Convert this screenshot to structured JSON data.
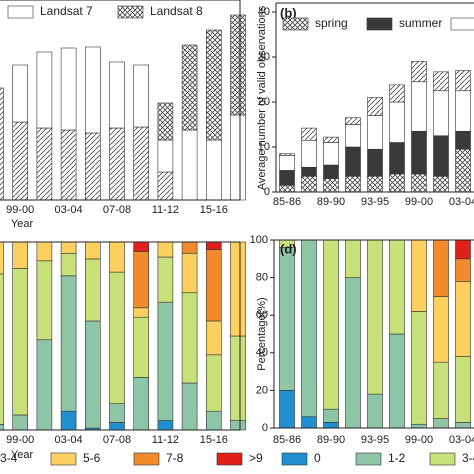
{
  "chart_data": [
    {
      "type": "bar",
      "stacked": true,
      "xlabel": "Year",
      "categories": [
        null,
        "99-00",
        null,
        "03-04",
        null,
        "07-08",
        null,
        "11-12",
        null,
        "15-16",
        null
      ],
      "ylim": [
        0,
        40
      ],
      "series": [
        {
          "color": "#ffffff",
          "hatch": "diag",
          "values": [
            22.4,
            15.6,
            14.4,
            14,
            13.4,
            14.4,
            14.6,
            5.6,
            0,
            0,
            0
          ]
        },
        {
          "name": "Landsat 7",
          "color": "#ffffff",
          "hatch": "none",
          "values": [
            0,
            11.4,
            15.2,
            16.4,
            17.2,
            13.2,
            12.4,
            6.4,
            14,
            12,
            17
          ]
        },
        {
          "name": "Landsat 8",
          "color": "#ffffff",
          "hatch": "cross",
          "values": [
            0,
            0,
            0,
            0,
            0,
            0,
            0,
            7.4,
            17,
            22,
            20
          ]
        }
      ]
    },
    {
      "type": "bar",
      "stacked": true,
      "title": "(b)",
      "ylabel": "Average number of valid observations",
      "categories": [
        "85-86",
        null,
        "89-90",
        null,
        "93-95",
        null,
        "99-00",
        null,
        "03-04"
      ],
      "ylim": [
        0,
        42
      ],
      "yticks": [
        0,
        10,
        20,
        30,
        40
      ],
      "series": [
        {
          "name": "spring",
          "color": "#ffffff",
          "hatch": "cross",
          "values": [
            1.5,
            3.5,
            3,
            3.5,
            3.5,
            4,
            4,
            3.5,
            9.5
          ]
        },
        {
          "name": "summer",
          "color": "#3a3a3a",
          "hatch": "none",
          "values": [
            3.3,
            2,
            3,
            6.5,
            6,
            7,
            9.5,
            9,
            4
          ]
        },
        {
          "color": "#ffffff",
          "hatch": "none",
          "values": [
            3.3,
            6,
            5,
            5,
            7.5,
            9,
            11,
            10,
            9
          ]
        },
        {
          "color": "#ffffff",
          "hatch": "diag",
          "values": [
            0.4,
            2.7,
            1.2,
            1.5,
            4,
            3.8,
            4.5,
            4.2,
            4.5
          ]
        }
      ]
    },
    {
      "type": "bar",
      "stacked": true,
      "xlabel": "Year",
      "categories": [
        null,
        "99-00",
        null,
        "03-04",
        null,
        "07-08",
        null,
        "11-12",
        null,
        "15-16",
        null
      ],
      "ylim": [
        0,
        100
      ],
      "series": [
        {
          "color": "#1f8fcf",
          "hatch": "none",
          "values": [
            0,
            0,
            0,
            10,
            1,
            4,
            0,
            5,
            0,
            0,
            0
          ]
        },
        {
          "color": "#8ec5a6",
          "hatch": "none",
          "values": [
            3,
            8,
            48,
            72,
            57,
            10,
            28,
            63,
            25,
            10,
            5
          ]
        },
        {
          "name": "3-4",
          "color": "#c8e07a",
          "hatch": "none",
          "values": [
            80,
            78,
            42,
            12,
            33,
            70,
            32,
            24,
            48,
            30,
            45
          ]
        },
        {
          "name": "5-6",
          "color": "#fdd060",
          "hatch": "none",
          "values": [
            17,
            14,
            10,
            6,
            9,
            16,
            5,
            8,
            21,
            18,
            50
          ]
        },
        {
          "name": "7-8",
          "color": "#f28a2e",
          "hatch": "none",
          "values": [
            0,
            0,
            0,
            0,
            0,
            0,
            30,
            0,
            6,
            38,
            0
          ]
        },
        {
          "name": ">9",
          "color": "#e0201b",
          "hatch": "none",
          "values": [
            0,
            0,
            0,
            0,
            0,
            0,
            5,
            0,
            0,
            4,
            0
          ]
        }
      ]
    },
    {
      "type": "bar",
      "stacked": true,
      "title": "(d)",
      "ylabel": "Percentage(%)",
      "categories": [
        "85-86",
        null,
        "89-90",
        null,
        "93-95",
        null,
        "99-00",
        null,
        "03-04"
      ],
      "ylim": [
        0,
        100
      ],
      "yticks": [
        0,
        20,
        40,
        60,
        80,
        100
      ],
      "series": [
        {
          "name": "0",
          "color": "#1f8fcf",
          "hatch": "none",
          "values": [
            20,
            6,
            3,
            0,
            0,
            0,
            0,
            0,
            0
          ]
        },
        {
          "name": "1-2",
          "color": "#8ec5a6",
          "hatch": "none",
          "values": [
            76,
            94,
            7,
            80,
            18,
            50,
            2,
            5,
            3
          ]
        },
        {
          "name": "3-4",
          "color": "#c8e07a",
          "hatch": "none",
          "values": [
            4,
            0,
            90,
            20,
            82,
            50,
            60,
            30,
            35
          ]
        },
        {
          "color": "#fdd060",
          "hatch": "none",
          "values": [
            0,
            0,
            0,
            0,
            0,
            0,
            38,
            35,
            40
          ]
        },
        {
          "color": "#f28a2e",
          "hatch": "none",
          "values": [
            0,
            0,
            0,
            0,
            0,
            0,
            0,
            30,
            12
          ]
        },
        {
          "color": "#e0201b",
          "hatch": "none",
          "values": [
            0,
            0,
            0,
            0,
            0,
            0,
            0,
            0,
            10
          ]
        }
      ]
    }
  ]
}
